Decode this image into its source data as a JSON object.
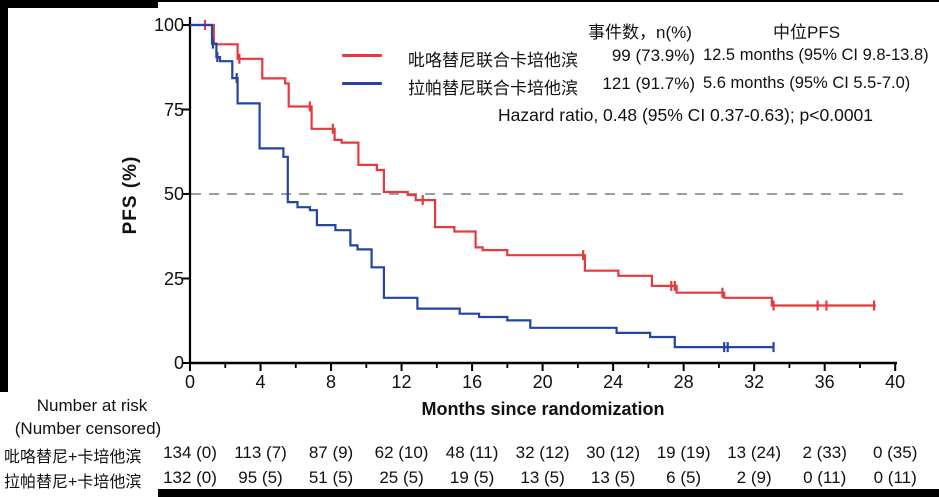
{
  "figure": {
    "y_axis_title": "PFS (%)",
    "x_axis_title": "Months since randomization"
  },
  "legend": {
    "col_events": "事件数，n(%)",
    "col_median": "中位PFS",
    "rows": [
      {
        "label": "吡咯替尼联合卡培他滨",
        "events": "99 (73.9%)",
        "median": "12.5 months (95% CI 9.8-13.8)",
        "color": "#e6393d"
      },
      {
        "label": "拉帕替尼联合卡培他滨",
        "events": "121 (91.7%)",
        "median": "5.6 months (95% CI 5.5-7.0)",
        "color": "#2344a2"
      }
    ],
    "hazard": "Hazard ratio, 0.48 (95% CI 0.37-0.63); p<0.0001"
  },
  "risk_table": {
    "header_line1": "Number at risk",
    "header_line2": "(Number censored)",
    "months": [
      0,
      4,
      8,
      12,
      16,
      20,
      24,
      28,
      32,
      36,
      40
    ],
    "rows": [
      {
        "label": "吡咯替尼+卡培他滨",
        "values": [
          "134 (0)",
          "113 (7)",
          "87 (9)",
          "62 (10)",
          "48 (11)",
          "32 (12)",
          "30 (12)",
          "19 (19)",
          "13 (24)",
          "2 (33)",
          "0 (35)"
        ]
      },
      {
        "label": "拉帕替尼+卡培他滨",
        "values": [
          "132 (0)",
          "95 (5)",
          "51 (5)",
          "25 (5)",
          "19 (5)",
          "13 (5)",
          "13 (5)",
          "6 (5)",
          "2 (9)",
          "0 (11)",
          "0 (11)"
        ]
      }
    ]
  },
  "chart_data": {
    "type": "line",
    "subtype": "kaplan-meier-step",
    "title": "",
    "xlabel": "Months since randomization",
    "ylabel": "PFS (%)",
    "xlim": [
      0,
      40
    ],
    "ylim": [
      0,
      100
    ],
    "xticks": [
      0,
      4,
      8,
      12,
      16,
      20,
      24,
      28,
      32,
      36,
      40
    ],
    "xticks_minor": [
      2,
      6,
      10,
      14,
      18,
      22,
      26,
      30,
      34,
      38
    ],
    "yticks": [
      0,
      25,
      50,
      75,
      100
    ],
    "grid": false,
    "reference_line": {
      "y": 50,
      "style": "dashed",
      "color": "#9e9e9e"
    },
    "legend_position": "top-right",
    "series": [
      {
        "name": "吡咯替尼联合卡培他滨",
        "color": "#e6393d",
        "median_pfs_months": 12.5,
        "events": "99 (73.9%)",
        "end_x": 38.9,
        "steps": [
          [
            0,
            100
          ],
          [
            1.35,
            94.3
          ],
          [
            2.7,
            90
          ],
          [
            4.1,
            84.2
          ],
          [
            5.4,
            82.7
          ],
          [
            5.6,
            75.9
          ],
          [
            6.9,
            69.3
          ],
          [
            8.2,
            66
          ],
          [
            8.6,
            65.2
          ],
          [
            9.55,
            58.6
          ],
          [
            10.6,
            57.1
          ],
          [
            11,
            50.6
          ],
          [
            12.35,
            49.7
          ],
          [
            12.8,
            48.2
          ],
          [
            13.9,
            40.2
          ],
          [
            15,
            38.9
          ],
          [
            16.2,
            34.2
          ],
          [
            16.6,
            33.4
          ],
          [
            18,
            31.9
          ],
          [
            22.4,
            27.3
          ],
          [
            24.3,
            25.8
          ],
          [
            26.2,
            22.8
          ],
          [
            27.6,
            20.8
          ],
          [
            30.3,
            19.3
          ],
          [
            33,
            17
          ]
        ],
        "censors": [
          [
            0.85,
            100
          ],
          [
            2.8,
            90
          ],
          [
            6.8,
            75.9
          ],
          [
            8.1,
            69.3
          ],
          [
            13.2,
            48.2
          ],
          [
            22.3,
            31.9
          ],
          [
            27.3,
            22.8
          ],
          [
            27.5,
            22.8
          ],
          [
            30.2,
            20.8
          ],
          [
            33.1,
            17
          ],
          [
            35.6,
            17
          ],
          [
            36.1,
            17
          ],
          [
            38.8,
            17
          ]
        ]
      },
      {
        "name": "拉帕替尼联合卡培他滨",
        "color": "#2344a2",
        "median_pfs_months": 5.6,
        "events": "121 (91.7%)",
        "end_x": 33.1,
        "steps": [
          [
            0,
            100
          ],
          [
            1.25,
            94.5
          ],
          [
            1.5,
            90.5
          ],
          [
            1.7,
            89.3
          ],
          [
            2.4,
            84.3
          ],
          [
            2.7,
            76.8
          ],
          [
            3.95,
            63.5
          ],
          [
            5.3,
            61
          ],
          [
            5.55,
            47.6
          ],
          [
            6.1,
            46.1
          ],
          [
            6.8,
            45.2
          ],
          [
            7.2,
            40.8
          ],
          [
            8.25,
            39.3
          ],
          [
            9.1,
            34.8
          ],
          [
            9.5,
            33.6
          ],
          [
            10.3,
            28.3
          ],
          [
            11,
            19.3
          ],
          [
            12.9,
            16.1
          ],
          [
            15.3,
            14.6
          ],
          [
            16.4,
            13.6
          ],
          [
            18,
            12.6
          ],
          [
            19.3,
            10.4
          ],
          [
            24.2,
            8.9
          ],
          [
            26.1,
            7.7
          ],
          [
            27.5,
            4.7
          ]
        ],
        "censors": [
          [
            1.3,
            94.5
          ],
          [
            1.55,
            90.5
          ],
          [
            2.65,
            84.3
          ],
          [
            30.3,
            4.7
          ],
          [
            30.5,
            4.7
          ],
          [
            33.1,
            4.7
          ]
        ]
      }
    ]
  }
}
